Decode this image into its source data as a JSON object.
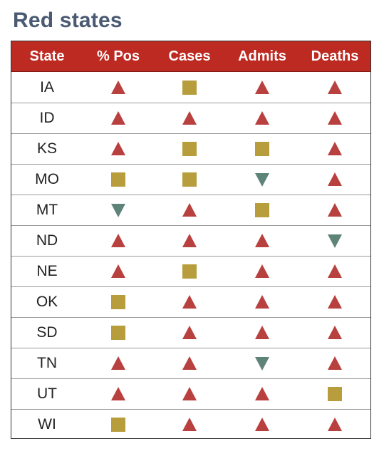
{
  "title": "Red states",
  "columns": [
    "State",
    "% Pos",
    "Cases",
    "Admits",
    "Deaths"
  ],
  "legend_colors": {
    "up": "#b8403e",
    "flat": "#b89d3c",
    "down": "#5e847a"
  },
  "rows": [
    {
      "state": "IA",
      "values": [
        "up",
        "flat",
        "up",
        "up"
      ]
    },
    {
      "state": "ID",
      "values": [
        "up",
        "up",
        "up",
        "up"
      ]
    },
    {
      "state": "KS",
      "values": [
        "up",
        "flat",
        "flat",
        "up"
      ]
    },
    {
      "state": "MO",
      "values": [
        "flat",
        "flat",
        "down",
        "up"
      ]
    },
    {
      "state": "MT",
      "values": [
        "down",
        "up",
        "flat",
        "up"
      ]
    },
    {
      "state": "ND",
      "values": [
        "up",
        "up",
        "up",
        "down"
      ]
    },
    {
      "state": "NE",
      "values": [
        "up",
        "flat",
        "up",
        "up"
      ]
    },
    {
      "state": "OK",
      "values": [
        "flat",
        "up",
        "up",
        "up"
      ]
    },
    {
      "state": "SD",
      "values": [
        "flat",
        "up",
        "up",
        "up"
      ]
    },
    {
      "state": "TN",
      "values": [
        "up",
        "up",
        "down",
        "up"
      ]
    },
    {
      "state": "UT",
      "values": [
        "up",
        "up",
        "up",
        "flat"
      ]
    },
    {
      "state": "WI",
      "values": [
        "flat",
        "up",
        "up",
        "up"
      ]
    }
  ]
}
